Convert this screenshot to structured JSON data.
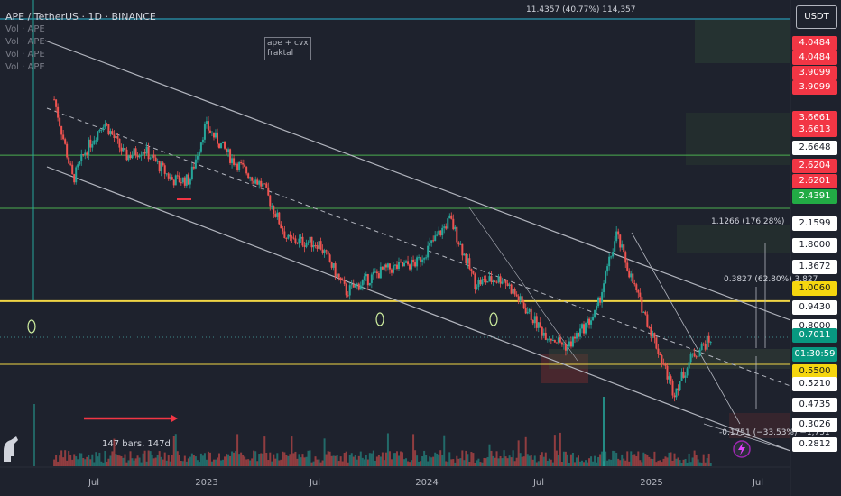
{
  "currency_button": "USDT",
  "legend": {
    "title": "APE / TetherUS · 1D · BINANCE",
    "lines": [
      "Vol · APE",
      "Vol · APE",
      "Vol · APE",
      "Vol · APE"
    ]
  },
  "note": "ape + cvx fraktal",
  "bars_label": "147 bars, 147d",
  "top_label": "11.4357 (40.77%) 114,357",
  "measure_up_1": "1.1266 (176.28%)",
  "measure_up_2": "0.3827 (62.80%) 3,827",
  "measure_down": "-0.1751 (−33.53%) −1,751",
  "countdown": "01:30:59",
  "colors": {
    "background": "#1e222d",
    "up": "#26a69a",
    "down": "#ef5350",
    "yellow": "#f0d545",
    "green_line": "#4caf50",
    "cyan_line": "#2bb5d4"
  },
  "price_badges": [
    {
      "value": "4.0484",
      "color": "#f23645",
      "text": "#ffffff"
    },
    {
      "value": "4.0484",
      "color": "#f23645",
      "text": "#ffffff"
    },
    {
      "value": "3.9099",
      "color": "#f23645",
      "text": "#ffffff"
    },
    {
      "value": "3.9099",
      "color": "#f23645",
      "text": "#ffffff"
    },
    {
      "value": "3.6661",
      "color": "#f23645",
      "text": "#ffffff"
    },
    {
      "value": "3.6613",
      "color": "#f23645",
      "text": "#ffffff"
    },
    {
      "value": "2.6648",
      "color": "#ffffff",
      "text": "#131722"
    },
    {
      "value": "2.6204",
      "color": "#f23645",
      "text": "#ffffff"
    },
    {
      "value": "2.6201",
      "color": "#f23645",
      "text": "#ffffff"
    },
    {
      "value": "2.4391",
      "color": "#22ab45",
      "text": "#ffffff"
    },
    {
      "value": "2.1599",
      "color": "#ffffff",
      "text": "#131722"
    },
    {
      "value": "1.8000",
      "color": "#ffffff",
      "text": "#131722"
    },
    {
      "value": "1.3672",
      "color": "#ffffff",
      "text": "#131722"
    },
    {
      "value": "1.0060",
      "color": "#f5d60f",
      "text": "#131722"
    },
    {
      "value": "0.9430",
      "color": "#ffffff",
      "text": "#131722"
    },
    {
      "value": "0.8000",
      "color": "#ffffff",
      "text": "#131722"
    },
    {
      "value": "0.7011",
      "color": "#089981",
      "text": "#ffffff"
    },
    {
      "value": "0.5500",
      "color": "#f5d60f",
      "text": "#131722"
    },
    {
      "value": "0.5210",
      "color": "#ffffff",
      "text": "#131722"
    },
    {
      "value": "0.4735",
      "color": "#ffffff",
      "text": "#131722"
    },
    {
      "value": "0.3026",
      "color": "#ffffff",
      "text": "#131722"
    },
    {
      "value": "0.2812",
      "color": "#ffffff",
      "text": "#131722"
    }
  ],
  "chart_data": {
    "type": "candlestick",
    "symbol": "APE/USDT",
    "scale": "log",
    "x_ticks": [
      "Jul",
      "2023",
      "Jul",
      "2024",
      "Jul",
      "2025",
      "Jul"
    ],
    "horizontal_levels": [
      {
        "price": 11.4357,
        "color": "cyan"
      },
      {
        "price": 4.05,
        "color": "green"
      },
      {
        "price": 2.44,
        "color": "green"
      },
      {
        "price": 1.006,
        "color": "yellow"
      },
      {
        "price": 0.55,
        "color": "yellow"
      }
    ],
    "price_path": [
      {
        "date": "2022-05-20",
        "close": 6.9
      },
      {
        "date": "2022-06-20",
        "close": 3.2
      },
      {
        "date": "2022-07-10",
        "close": 4.2
      },
      {
        "date": "2022-08-10",
        "close": 5.6
      },
      {
        "date": "2022-09-15",
        "close": 4.0
      },
      {
        "date": "2022-10-15",
        "close": 4.3
      },
      {
        "date": "2022-12-01",
        "close": 3.2
      },
      {
        "date": "2022-12-30",
        "close": 3.2
      },
      {
        "date": "2023-01-25",
        "close": 5.4
      },
      {
        "date": "2023-03-10",
        "close": 3.9
      },
      {
        "date": "2023-05-01",
        "close": 3.0
      },
      {
        "date": "2023-06-10",
        "close": 1.8
      },
      {
        "date": "2023-08-01",
        "close": 1.75
      },
      {
        "date": "2023-09-15",
        "close": 1.1
      },
      {
        "date": "2023-11-15",
        "close": 1.35
      },
      {
        "date": "2024-01-10",
        "close": 1.45
      },
      {
        "date": "2024-03-05",
        "close": 2.2
      },
      {
        "date": "2024-04-15",
        "close": 1.2
      },
      {
        "date": "2024-06-01",
        "close": 1.25
      },
      {
        "date": "2024-08-05",
        "close": 0.75
      },
      {
        "date": "2024-09-15",
        "close": 0.65
      },
      {
        "date": "2024-11-01",
        "close": 0.9
      },
      {
        "date": "2024-12-05",
        "close": 1.9
      },
      {
        "date": "2025-01-01",
        "close": 1.2
      },
      {
        "date": "2025-02-10",
        "close": 0.65
      },
      {
        "date": "2025-03-10",
        "close": 0.42
      },
      {
        "date": "2025-04-10",
        "close": 0.6
      },
      {
        "date": "2025-05-10",
        "close": 0.7011
      }
    ]
  }
}
